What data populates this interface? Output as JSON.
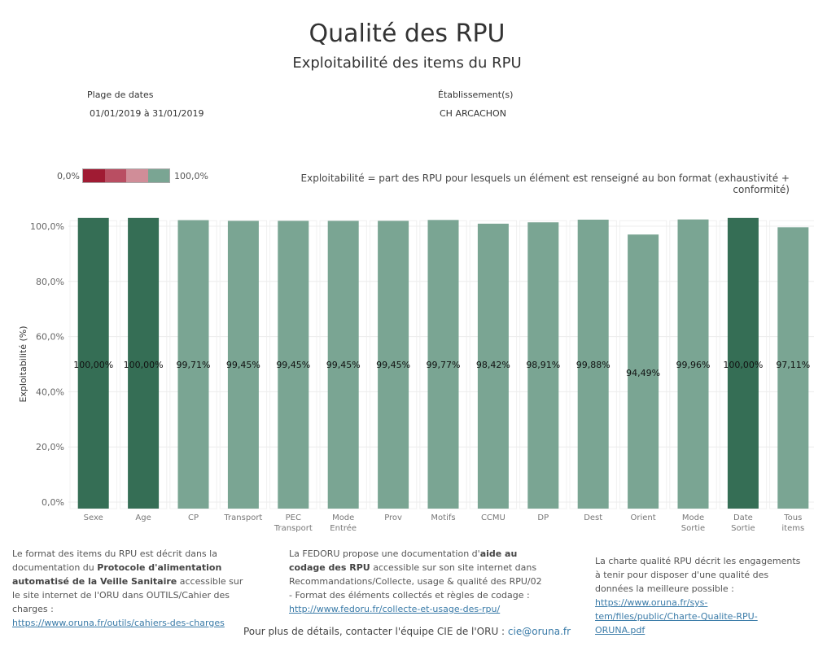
{
  "header": {
    "title": "Qualité des RPU",
    "subtitle": "Exploitabilité des items du RPU"
  },
  "filters": {
    "date_label": "Plage de dates",
    "date_value": "01/01/2019 à 31/01/2019",
    "etab_label": "Établissement(s)",
    "etab_value": "CH ARCACHON"
  },
  "legend": {
    "min_label": "0,0%",
    "max_label": "100,0%",
    "colors": [
      "#a01b33",
      "#b94e62",
      "#d08d98",
      "#7aa593"
    ]
  },
  "definition": "Exploitabilité = part des RPU pour lesquels un élément est renseigné au bon format (exhaustivité + conformité)",
  "chart_data": {
    "type": "bar",
    "ylabel": "Exploitabilité (%)",
    "ylim": [
      0,
      100
    ],
    "yticks": [
      "0,0%",
      "20,0%",
      "40,0%",
      "60,0%",
      "80,0%",
      "100,0%"
    ],
    "categories": [
      [
        "Sexe"
      ],
      [
        "Age"
      ],
      [
        "CP"
      ],
      [
        "Transport"
      ],
      [
        "PEC",
        "Transport"
      ],
      [
        "Mode",
        "Entrée"
      ],
      [
        "Prov"
      ],
      [
        "Motifs"
      ],
      [
        "CCMU"
      ],
      [
        "DP"
      ],
      [
        "Dest"
      ],
      [
        "Orient"
      ],
      [
        "Mode",
        "Sortie"
      ],
      [
        "Date",
        "Sortie"
      ],
      [
        "Tous",
        "items"
      ]
    ],
    "values": [
      100.0,
      100.0,
      99.71,
      99.45,
      99.45,
      99.45,
      99.45,
      99.77,
      98.42,
      98.91,
      99.88,
      94.49,
      99.96,
      100.0,
      97.11
    ],
    "labels": [
      "100,00%",
      "100,00%",
      "99,71%",
      "99,45%",
      "99,45%",
      "99,45%",
      "99,45%",
      "99,77%",
      "98,42%",
      "98,91%",
      "99,88%",
      "94,49%",
      "99,96%",
      "100,00%",
      "97,11%"
    ],
    "colors": {
      "full": "#356e55",
      "high": "#7aa593"
    },
    "grid": true
  },
  "footer": {
    "col1": {
      "t1": "Le format des items du RPU est décrit dans la documentation du ",
      "b1": "Protocole d'alimentation automatisé de la Veille Sanitaire",
      "t2": " accessible sur le site internet de l'ORU dans OUTILS/Cahier des charges :",
      "link": "https://www.oruna.fr/outils/cahiers-des-charges"
    },
    "col2": {
      "t1": "La FEDORU propose une documentation d'",
      "b1": "aide au codage des RPU",
      "t2": " accessible sur son site internet dans Recommandations/Collecte, usage & qualité des RPU/02 - Format des éléments collectés et règles de codage :",
      "link": "http://www.fedoru.fr/collecte-et-usage-des-rpu/"
    },
    "col3": {
      "t1": "La charte qualité RPU décrit les engagements à tenir pour disposer d'une qualité des données la meilleure possible : ",
      "link": "https://www.oruna.fr/sys-tem/files/public/Charte-Qualite-RPU-ORUNA.pdf"
    },
    "contact_text": "Pour plus de détails, contacter l'équipe CIE de l'ORU : ",
    "contact_mail": "cie@oruna.fr"
  }
}
